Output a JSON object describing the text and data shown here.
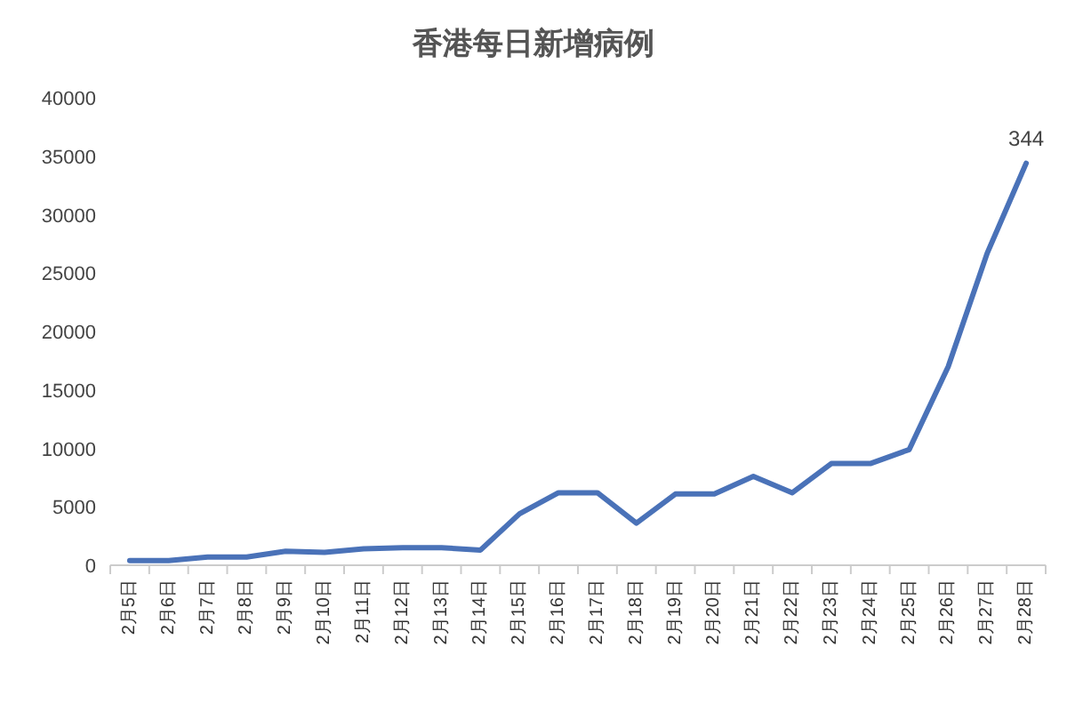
{
  "chart_data": {
    "type": "line",
    "title": "香港每日新增病例",
    "categories": [
      "2月5日",
      "2月6日",
      "2月7日",
      "2月8日",
      "2月9日",
      "2月10日",
      "2月11日",
      "2月12日",
      "2月13日",
      "2月14日",
      "2月15日",
      "2月16日",
      "2月17日",
      "2月18日",
      "2月19日",
      "2月20日",
      "2月21日",
      "2月22日",
      "2月23日",
      "2月24日",
      "2月25日",
      "2月26日",
      "2月27日",
      "2月28日"
    ],
    "series": [
      {
        "color": "#4a72b8",
        "values": [
          400,
          400,
          700,
          700,
          1200,
          1100,
          1400,
          1500,
          1500,
          1300,
          4400,
          6200,
          6200,
          3600,
          6100,
          6100,
          7600,
          6200,
          8700,
          8700,
          9900,
          17000,
          26700,
          34400
        ]
      }
    ],
    "ylim": [
      0,
      40000
    ],
    "yticks": [
      0,
      5000,
      10000,
      15000,
      20000,
      25000,
      30000,
      35000,
      40000
    ],
    "annotations": [
      {
        "text": "344",
        "x": "2月28日",
        "y": 34400
      }
    ],
    "grid": false,
    "marker": "none"
  }
}
